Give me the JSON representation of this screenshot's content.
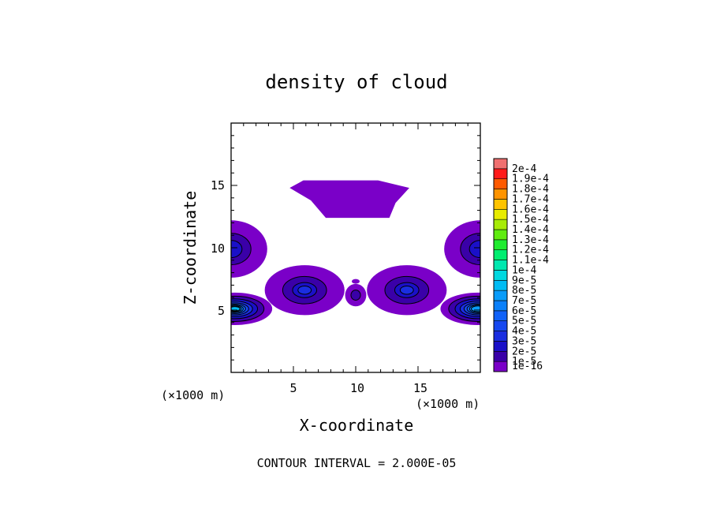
{
  "chart_data": {
    "type": "contour",
    "title": "density of cloud",
    "xlabel": "X-coordinate",
    "ylabel": "Z-coordinate",
    "x_unit": "(×1000 m)",
    "y_unit": "(×1000 m)",
    "xlim": [
      0,
      20
    ],
    "ylim": [
      0,
      20
    ],
    "x_ticks": [
      5,
      10,
      15
    ],
    "y_ticks": [
      5,
      10,
      15
    ],
    "footer": "CONTOUR INTERVAL = 2.000E-05",
    "contour_interval": 2e-05,
    "colorbar": {
      "labels": [
        "1e-16",
        "1e-5",
        "2e-5",
        "3e-5",
        "4e-5",
        "5e-5",
        "6e-5",
        "7e-5",
        "8e-5",
        "9e-5",
        "1e-4",
        "1.1e-4",
        "1.2e-4",
        "1.3e-4",
        "1.4e-4",
        "1.5e-4",
        "1.6e-4",
        "1.7e-4",
        "1.8e-4",
        "1.9e-4",
        "2e-4"
      ],
      "colors": [
        "#7a00c8",
        "#3a00a8",
        "#1a10c8",
        "#1a2ee0",
        "#1648f0",
        "#1062f8",
        "#0a80fa",
        "#089cfa",
        "#00bcf4",
        "#00d8e0",
        "#00e8b0",
        "#00ee70",
        "#20ec30",
        "#60ec10",
        "#a8ec08",
        "#e8ec00",
        "#ffc400",
        "#ff9400",
        "#ff5a00",
        "#ff1a1a",
        "#f07070"
      ]
    },
    "regions": [
      {
        "name": "upper-plateau",
        "max_level": 0
      },
      {
        "name": "left-edge-upper-cell",
        "max_level": 2
      },
      {
        "name": "left-edge-lower-cell",
        "max_level": 8
      },
      {
        "name": "right-edge-upper-cell",
        "max_level": 2
      },
      {
        "name": "right-edge-lower-cell",
        "max_level": 7
      },
      {
        "name": "center-left-cell",
        "max_level": 3
      },
      {
        "name": "center-right-cell",
        "max_level": 3
      },
      {
        "name": "center-small-cell",
        "max_level": 1
      }
    ]
  }
}
